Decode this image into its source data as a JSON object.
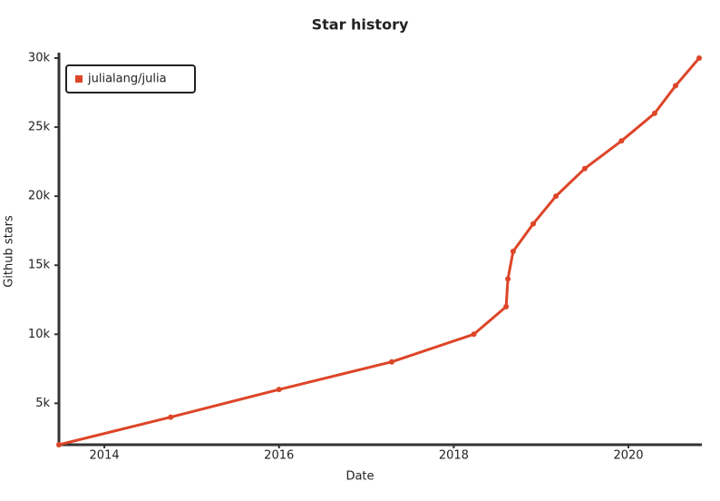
{
  "chart_data": {
    "type": "line",
    "title": "Star history",
    "x_label": "Date",
    "y_label": "Github stars",
    "x": [
      2013.48,
      2014.76,
      2016.0,
      2017.29,
      2018.23,
      2018.6,
      2018.62,
      2018.68,
      2018.91,
      2019.17,
      2019.5,
      2019.92,
      2020.3,
      2020.54,
      2020.81
    ],
    "series": [
      {
        "name": "julialang/julia",
        "color": "#dd4528",
        "values": [
          2000,
          4000,
          6000,
          8000,
          10000,
          12000,
          14000,
          16000,
          18000,
          20000,
          22000,
          24000,
          26000,
          28000,
          30000
        ]
      }
    ],
    "xlim": [
      2013.48,
      2020.82
    ],
    "xticks": [
      2014,
      2016,
      2018,
      2020
    ],
    "ylim": [
      2000,
      30000
    ],
    "yticks": [
      {
        "value": 5000,
        "label": "5k"
      },
      {
        "value": 10000,
        "label": "10k"
      },
      {
        "value": 15000,
        "label": "15k"
      },
      {
        "value": 20000,
        "label": "20k"
      },
      {
        "value": 25000,
        "label": "25k"
      },
      {
        "value": 30000,
        "label": "30k"
      }
    ],
    "legend": "top-left",
    "grid": false
  }
}
